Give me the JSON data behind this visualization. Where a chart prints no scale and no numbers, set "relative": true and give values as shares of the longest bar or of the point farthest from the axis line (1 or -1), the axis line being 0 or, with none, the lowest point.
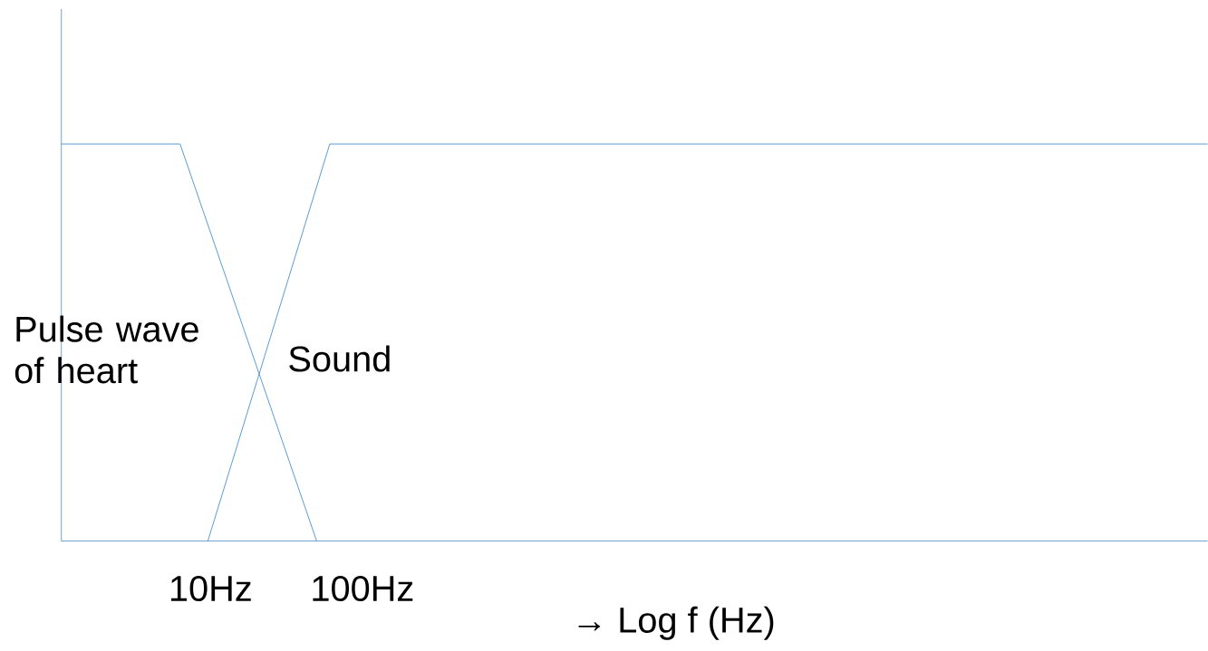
{
  "chart_data": {
    "type": "line",
    "relative": true,
    "log": "x",
    "xlabel": "→  Log f (Hz)",
    "xlim": [
      1.04,
      37000000
    ],
    "xticks": [
      {
        "value": 10,
        "label": "10Hz"
      },
      {
        "value": 100,
        "label": "100Hz"
      }
    ],
    "legend": false,
    "grid": false,
    "marker": "none",
    "line_style": "solid",
    "tick_labels": "x",
    "series": [
      {
        "name": "Pulse wave of heart",
        "color": "#5b9bd5",
        "x": [
          1.04,
          6.3,
          50
        ],
        "values": [
          1,
          1,
          0
        ]
      },
      {
        "name": "Sound",
        "color": "#5b9bd5",
        "x": [
          9.6,
          61,
          37000000
        ],
        "values": [
          0,
          1,
          1
        ]
      }
    ]
  }
}
